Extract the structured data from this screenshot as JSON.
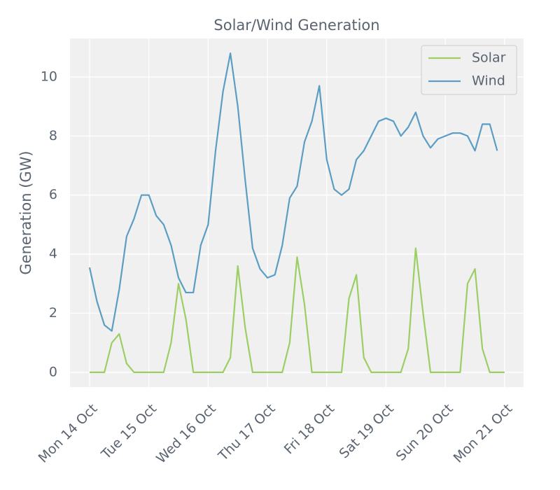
{
  "chart_data": {
    "type": "line",
    "title": "Solar/Wind Generation",
    "y_label": "Generation (GW)",
    "x": [
      0,
      0.125,
      0.25,
      0.375,
      0.5,
      0.625,
      0.75,
      0.875,
      1,
      1.125,
      1.25,
      1.375,
      1.5,
      1.625,
      1.75,
      1.875,
      2,
      2.125,
      2.25,
      2.375,
      2.5,
      2.625,
      2.75,
      2.875,
      3,
      3.125,
      3.25,
      3.375,
      3.5,
      3.625,
      3.75,
      3.875,
      4,
      4.125,
      4.25,
      4.375,
      4.5,
      4.625,
      4.75,
      4.875,
      5,
      5.125,
      5.25,
      5.375,
      5.5,
      5.625,
      5.75,
      5.875,
      6,
      6.125,
      6.25,
      6.375,
      6.5,
      6.625,
      6.75,
      6.875,
      7
    ],
    "series": [
      {
        "name": "Solar",
        "color": "#9bcf63",
        "values": [
          0,
          0,
          0,
          1.0,
          1.3,
          0.3,
          0,
          0,
          0,
          0,
          0,
          1.0,
          3.0,
          1.8,
          0,
          0,
          0,
          0,
          0,
          0.5,
          3.6,
          1.5,
          0,
          0,
          0,
          0,
          0,
          1.0,
          3.9,
          2.3,
          0,
          0,
          0,
          0,
          0,
          2.5,
          3.3,
          0.5,
          0,
          0,
          0,
          0,
          0,
          0.8,
          4.2,
          2.0,
          0,
          0,
          0,
          0,
          0,
          3.0,
          3.5,
          0.8,
          0,
          0,
          0
        ]
      },
      {
        "name": "Wind",
        "color": "#5b9ec4",
        "values": [
          3.55,
          2.4,
          1.6,
          1.4,
          2.8,
          4.6,
          5.2,
          6.0,
          6.0,
          5.3,
          5.0,
          4.3,
          3.2,
          2.7,
          2.7,
          4.3,
          5.0,
          7.5,
          9.5,
          10.8,
          9.0,
          6.5,
          4.2,
          3.5,
          3.2,
          3.3,
          4.3,
          5.9,
          6.3,
          7.8,
          8.5,
          9.7,
          7.2,
          6.2,
          6.0,
          6.2,
          7.2,
          7.5,
          8.0,
          8.5,
          8.6,
          8.5,
          8.0,
          8.3,
          8.8,
          8.0,
          7.6,
          7.9,
          8.0,
          8.1,
          8.1,
          8.0,
          7.5,
          8.4,
          8.4,
          7.5,
          null
        ]
      }
    ],
    "xlim": [
      -0.33,
      7.32
    ],
    "ylim": [
      -0.5,
      11.3
    ],
    "xticks": [
      {
        "value": 0,
        "label": "Mon 14 Oct"
      },
      {
        "value": 1,
        "label": "Tue 15 Oct"
      },
      {
        "value": 2,
        "label": "Wed 16 Oct"
      },
      {
        "value": 3,
        "label": "Thu 17 Oct"
      },
      {
        "value": 4,
        "label": "Fri 18 Oct"
      },
      {
        "value": 5,
        "label": "Sat 19 Oct"
      },
      {
        "value": 6,
        "label": "Sun 20 Oct"
      },
      {
        "value": 7,
        "label": "Mon 21 Oct"
      }
    ],
    "yticks": [
      0,
      2,
      4,
      6,
      8,
      10
    ],
    "grid": true,
    "legend": "upper right"
  }
}
